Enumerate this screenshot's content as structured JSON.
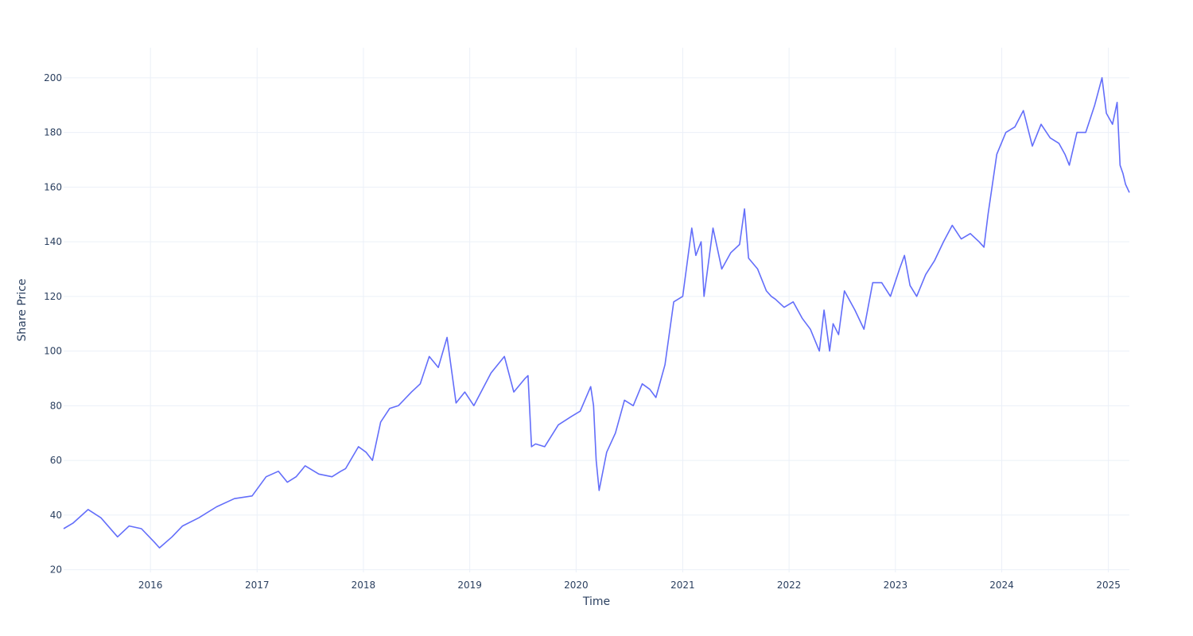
{
  "chart_data": {
    "type": "line",
    "title": "",
    "xlabel": "Time",
    "ylabel": "Share Price",
    "x_tick_labels": [
      "2016",
      "2017",
      "2018",
      "2019",
      "2020",
      "2021",
      "2022",
      "2023",
      "2024",
      "2025"
    ],
    "y_tick_labels": [
      "20",
      "40",
      "60",
      "80",
      "100",
      "120",
      "140",
      "160",
      "180",
      "200"
    ],
    "xlim": [
      "2015-03-09",
      "2025-03-14"
    ],
    "ylim": [
      19,
      211
    ],
    "grid": true,
    "legend": "none",
    "colors": {
      "line": "#636efa",
      "grid": "#ebf0f8",
      "text": "#2a3f5f",
      "background": "#ffffff"
    },
    "series": [
      {
        "x": [
          "2015-03-09",
          "2015-04-10",
          "2015-06-01",
          "2015-07-15",
          "2015-09-10",
          "2015-10-20",
          "2015-12-01",
          "2016-01-15",
          "2016-02-01",
          "2016-03-15",
          "2016-04-20",
          "2016-06-15",
          "2016-08-15",
          "2016-10-15",
          "2016-12-15",
          "2017-02-01",
          "2017-03-15",
          "2017-04-15",
          "2017-05-15",
          "2017-06-15",
          "2017-08-01",
          "2017-09-15",
          "2017-10-15",
          "2017-11-01",
          "2017-12-15",
          "2018-01-10",
          "2018-02-01",
          "2018-03-01",
          "2018-04-01",
          "2018-05-01",
          "2018-06-15",
          "2018-07-15",
          "2018-08-15",
          "2018-09-15",
          "2018-10-15",
          "2018-11-15",
          "2018-12-15",
          "2019-01-15",
          "2019-03-15",
          "2019-04-30",
          "2019-06-01",
          "2019-07-10",
          "2019-07-20",
          "2019-08-01",
          "2019-08-15",
          "2019-09-15",
          "2019-11-01",
          "2019-12-15",
          "2020-01-15",
          "2020-02-20",
          "2020-03-01",
          "2020-03-10",
          "2020-03-20",
          "2020-04-15",
          "2020-05-15",
          "2020-06-15",
          "2020-07-15",
          "2020-08-15",
          "2020-09-10",
          "2020-10-01",
          "2020-11-01",
          "2020-12-01",
          "2021-01-01",
          "2021-02-01",
          "2021-02-15",
          "2021-03-05",
          "2021-03-15",
          "2021-04-15",
          "2021-05-15",
          "2021-06-15",
          "2021-07-15",
          "2021-08-01",
          "2021-08-15",
          "2021-09-15",
          "2021-10-15",
          "2021-11-01",
          "2021-11-15",
          "2021-12-15",
          "2022-01-15",
          "2022-02-15",
          "2022-03-15",
          "2022-04-15",
          "2022-05-01",
          "2022-05-20",
          "2022-06-01",
          "2022-06-20",
          "2022-07-10",
          "2022-08-15",
          "2022-09-15",
          "2022-10-15",
          "2022-11-15",
          "2022-12-15",
          "2023-01-15",
          "2023-02-01",
          "2023-02-20",
          "2023-03-15",
          "2023-04-15",
          "2023-05-15",
          "2023-06-15",
          "2023-07-15",
          "2023-08-15",
          "2023-09-15",
          "2023-10-15",
          "2023-11-01",
          "2023-11-15",
          "2023-12-15",
          "2024-01-15",
          "2024-02-15",
          "2024-03-15",
          "2024-04-15",
          "2024-05-15",
          "2024-06-15",
          "2024-07-15",
          "2024-08-05",
          "2024-08-20",
          "2024-09-15",
          "2024-10-15",
          "2024-11-15",
          "2024-12-10",
          "2024-12-25",
          "2025-01-15",
          "2025-01-31",
          "2025-02-10",
          "2025-02-20",
          "2025-03-01",
          "2025-03-14"
        ],
        "y": [
          35,
          37,
          42,
          39,
          32,
          36,
          35,
          30,
          28,
          32,
          36,
          39,
          43,
          46,
          47,
          54,
          56,
          52,
          54,
          58,
          55,
          54,
          56,
          57,
          65,
          63,
          60,
          74,
          79,
          80,
          85,
          88,
          98,
          94,
          105,
          81,
          85,
          80,
          92,
          98,
          85,
          90,
          91,
          65,
          66,
          65,
          73,
          76,
          78,
          87,
          80,
          60,
          49,
          63,
          70,
          82,
          80,
          88,
          86,
          83,
          95,
          118,
          120,
          145,
          135,
          140,
          120,
          145,
          130,
          136,
          139,
          152,
          134,
          130,
          122,
          120,
          119,
          116,
          118,
          112,
          108,
          100,
          115,
          100,
          110,
          106,
          122,
          115,
          108,
          125,
          125,
          120,
          130,
          135,
          124,
          120,
          128,
          133,
          140,
          146,
          141,
          143,
          140,
          138,
          150,
          172,
          180,
          182,
          188,
          175,
          183,
          178,
          176,
          172,
          168,
          180,
          180,
          190,
          200,
          187,
          183,
          191,
          168,
          165,
          161,
          158
        ]
      }
    ]
  }
}
